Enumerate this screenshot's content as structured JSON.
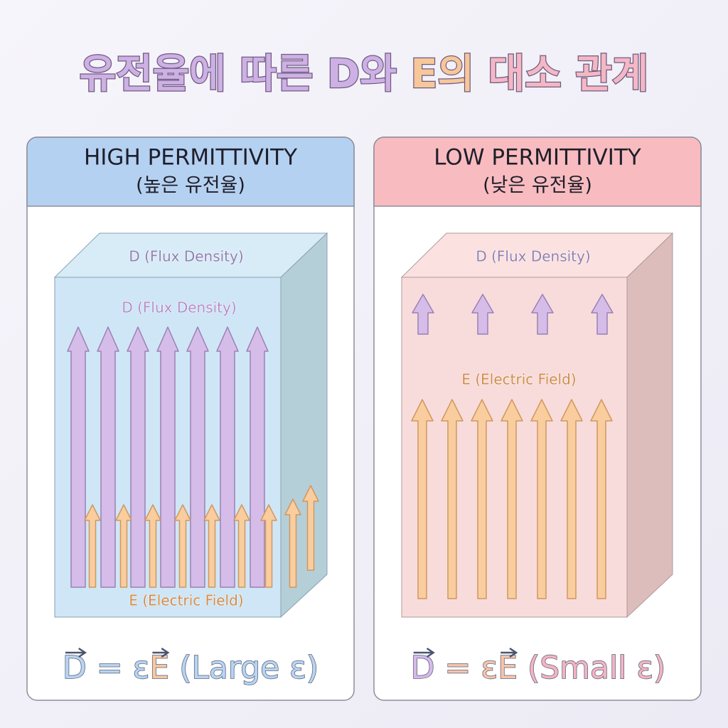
{
  "title": [
    "유전율에 따른",
    "D와",
    "E의",
    "대소 관계"
  ],
  "panels": [
    {
      "heading": "HIGH PERMITTIVITY",
      "subheading": "(높은 유전율)",
      "top_label": "D (Flux Density)",
      "d_label": "D (Flux Density)",
      "e_label": "E (Electric Field)",
      "formula": {
        "d": "D",
        "eq": "=",
        "eps": "ε",
        "e": "E",
        "note": "(Large ε)"
      }
    },
    {
      "heading": "LOW PERMITTIVITY",
      "subheading": "(낮은 유전율)",
      "top_label": "D (Flux Density)",
      "e_label": "E (Electric Field)",
      "formula": {
        "d": "D",
        "eq": "=",
        "eps": "ε",
        "e": "E",
        "note": "(Small ε)"
      }
    }
  ]
}
